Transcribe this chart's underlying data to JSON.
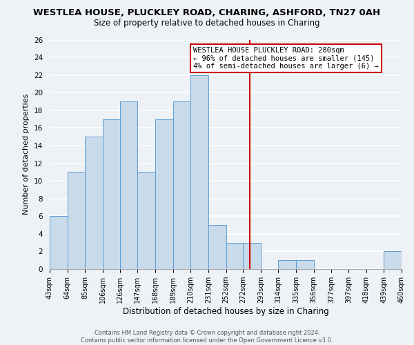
{
  "title": "WESTLEA HOUSE, PLUCKLEY ROAD, CHARING, ASHFORD, TN27 0AH",
  "subtitle": "Size of property relative to detached houses in Charing",
  "xlabel": "Distribution of detached houses by size in Charing",
  "ylabel": "Number of detached properties",
  "bin_edges": [
    43,
    64,
    85,
    106,
    126,
    147,
    168,
    189,
    210,
    231,
    252,
    272,
    293,
    314,
    335,
    356,
    377,
    397,
    418,
    439,
    460
  ],
  "counts": [
    6,
    11,
    15,
    17,
    19,
    11,
    17,
    19,
    22,
    5,
    3,
    3,
    0,
    1,
    1,
    0,
    0,
    0,
    0,
    2
  ],
  "bar_color": "#c9daea",
  "bar_edge_color": "#5b9bd5",
  "reference_line_x": 280,
  "reference_line_color": "#cc0000",
  "ylim": [
    0,
    26
  ],
  "yticks": [
    0,
    2,
    4,
    6,
    8,
    10,
    12,
    14,
    16,
    18,
    20,
    22,
    24,
    26
  ],
  "annotation_title": "WESTLEA HOUSE PLUCKLEY ROAD: 280sqm",
  "annotation_line1": "← 96% of detached houses are smaller (145)",
  "annotation_line2": "4% of semi-detached houses are larger (6) →",
  "annotation_box_facecolor": "#ffffff",
  "annotation_box_edgecolor": "#cc0000",
  "footer_line1": "Contains HM Land Registry data © Crown copyright and database right 2024.",
  "footer_line2": "Contains public sector information licensed under the Open Government Licence v3.0.",
  "background_color": "#eef2f7",
  "grid_color": "#ffffff",
  "title_fontsize": 9.5,
  "subtitle_fontsize": 8.5
}
